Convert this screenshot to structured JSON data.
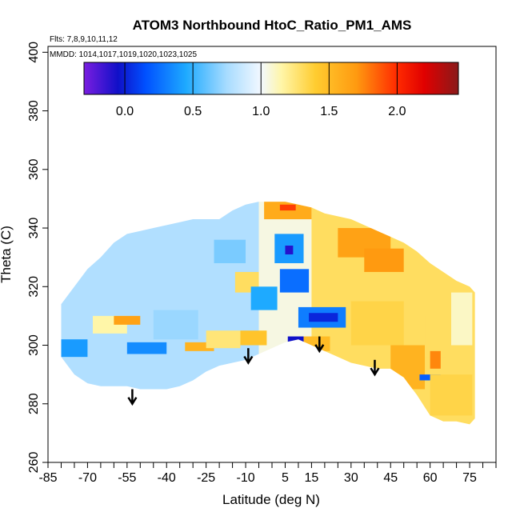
{
  "chart_data": {
    "type": "heatmap",
    "title": "ATOM3 Northbound HtoC_Ratio_PM1_AMS",
    "subtitle_flights": "Flts: 7,8,9,10,11,12",
    "subtitle_dates": "MMDD: 1014,1017,1019,1020,1023,1025",
    "xlabel": "Latitude (deg N)",
    "ylabel": "Theta (C)",
    "xlim": [
      -85,
      85
    ],
    "ylim": [
      260,
      402
    ],
    "x_ticks": [
      -85,
      -70,
      -55,
      -40,
      -25,
      -10,
      5,
      15,
      30,
      45,
      60,
      75
    ],
    "x_tick_labels": [
      "-85",
      "-70",
      "-55",
      "-40",
      "-25",
      "-10",
      "5",
      "15",
      "30",
      "45",
      "60",
      "75"
    ],
    "x_minor_step": 5,
    "y_ticks": [
      260,
      280,
      300,
      320,
      340,
      360,
      380,
      400
    ],
    "y_tick_labels": [
      "260",
      "280",
      "300",
      "320",
      "340",
      "360",
      "380",
      "400"
    ],
    "colorbar": {
      "range": [
        -0.3,
        2.45
      ],
      "ticks": [
        0.0,
        0.5,
        1.0,
        1.5,
        2.0
      ],
      "tick_labels": [
        "0.0",
        "0.5",
        "1.0",
        "1.5",
        "2.0"
      ],
      "stops": [
        {
          "v": -0.3,
          "c": "#7a1ee0"
        },
        {
          "v": -0.05,
          "c": "#1010c8"
        },
        {
          "v": 0.15,
          "c": "#0050ff"
        },
        {
          "v": 0.45,
          "c": "#1eaaff"
        },
        {
          "v": 0.75,
          "c": "#a8dcff"
        },
        {
          "v": 1.0,
          "c": "#f2f8ff"
        },
        {
          "v": 1.15,
          "c": "#fff6a8"
        },
        {
          "v": 1.4,
          "c": "#ffcc30"
        },
        {
          "v": 1.7,
          "c": "#ff9a10"
        },
        {
          "v": 2.0,
          "c": "#ff2a00"
        },
        {
          "v": 2.2,
          "c": "#e00000"
        },
        {
          "v": 2.45,
          "c": "#8a1a1a"
        }
      ]
    },
    "envelope": [
      {
        "x": -80,
        "ymin": 296,
        "ymax": 314
      },
      {
        "x": -75,
        "ymin": 290,
        "ymax": 320
      },
      {
        "x": -70,
        "ymin": 287,
        "ymax": 326
      },
      {
        "x": -65,
        "ymin": 286,
        "ymax": 330
      },
      {
        "x": -60,
        "ymin": 286,
        "ymax": 335
      },
      {
        "x": -55,
        "ymin": 286,
        "ymax": 338
      },
      {
        "x": -50,
        "ymin": 285,
        "ymax": 339
      },
      {
        "x": -45,
        "ymin": 285,
        "ymax": 340
      },
      {
        "x": -40,
        "ymin": 285,
        "ymax": 341
      },
      {
        "x": -35,
        "ymin": 286,
        "ymax": 342
      },
      {
        "x": -30,
        "ymin": 288,
        "ymax": 343
      },
      {
        "x": -25,
        "ymin": 291,
        "ymax": 343
      },
      {
        "x": -20,
        "ymin": 293,
        "ymax": 343
      },
      {
        "x": -15,
        "ymin": 294,
        "ymax": 346
      },
      {
        "x": -10,
        "ymin": 295,
        "ymax": 348
      },
      {
        "x": -5,
        "ymin": 297,
        "ymax": 349
      },
      {
        "x": 0,
        "ymin": 299,
        "ymax": 349
      },
      {
        "x": 5,
        "ymin": 301,
        "ymax": 349
      },
      {
        "x": 10,
        "ymin": 302,
        "ymax": 348
      },
      {
        "x": 15,
        "ymin": 300,
        "ymax": 347
      },
      {
        "x": 20,
        "ymin": 298,
        "ymax": 345
      },
      {
        "x": 25,
        "ymin": 296,
        "ymax": 344
      },
      {
        "x": 30,
        "ymin": 294,
        "ymax": 343
      },
      {
        "x": 35,
        "ymin": 293,
        "ymax": 341
      },
      {
        "x": 40,
        "ymin": 292,
        "ymax": 339
      },
      {
        "x": 45,
        "ymin": 292,
        "ymax": 337
      },
      {
        "x": 50,
        "ymin": 289,
        "ymax": 335
      },
      {
        "x": 55,
        "ymin": 283,
        "ymax": 332
      },
      {
        "x": 60,
        "ymin": 276,
        "ymax": 328
      },
      {
        "x": 65,
        "ymin": 274,
        "ymax": 325
      },
      {
        "x": 70,
        "ymin": 274,
        "ymax": 322
      },
      {
        "x": 75,
        "ymin": 273,
        "ymax": 320
      },
      {
        "x": 77,
        "ymin": 275,
        "ymax": 318
      }
    ],
    "background_regions": [
      {
        "x0": -85,
        "x1": -5,
        "y0": 260,
        "y1": 350,
        "v": 0.78
      },
      {
        "x0": -5,
        "x1": 15,
        "y0": 260,
        "y1": 350,
        "v": 1.05
      },
      {
        "x0": 15,
        "x1": 85,
        "y0": 260,
        "y1": 350,
        "v": 1.3
      }
    ],
    "features": [
      {
        "x0": -80,
        "x1": -70,
        "y0": 296,
        "y1": 302,
        "v": 0.4
      },
      {
        "x0": -68,
        "x1": -55,
        "y0": 304,
        "y1": 310,
        "v": 1.15
      },
      {
        "x0": -60,
        "x1": -50,
        "y0": 307,
        "y1": 310,
        "v": 1.65
      },
      {
        "x0": -55,
        "x1": -40,
        "y0": 297,
        "y1": 301,
        "v": 0.35
      },
      {
        "x0": -45,
        "x1": -28,
        "y0": 302,
        "y1": 312,
        "v": 0.72
      },
      {
        "x0": -33,
        "x1": -22,
        "y0": 298,
        "y1": 301,
        "v": 1.55
      },
      {
        "x0": -25,
        "x1": -12,
        "y0": 299,
        "y1": 305,
        "v": 1.25
      },
      {
        "x0": -22,
        "x1": -10,
        "y0": 328,
        "y1": 336,
        "v": 0.65
      },
      {
        "x0": -14,
        "x1": -5,
        "y0": 318,
        "y1": 325,
        "v": 1.3
      },
      {
        "x0": -8,
        "x1": 2,
        "y0": 312,
        "y1": 320,
        "v": 0.45
      },
      {
        "x0": -12,
        "x1": -2,
        "y0": 300,
        "y1": 305,
        "v": 1.45
      },
      {
        "x0": -3,
        "x1": 15,
        "y0": 343,
        "y1": 349,
        "v": 1.6
      },
      {
        "x0": 3,
        "x1": 9,
        "y0": 346,
        "y1": 348,
        "v": 1.95
      },
      {
        "x0": 1,
        "x1": 12,
        "y0": 328,
        "y1": 338,
        "v": 0.4
      },
      {
        "x0": 5,
        "x1": 8,
        "y0": 331,
        "y1": 334,
        "v": -0.1
      },
      {
        "x0": 3,
        "x1": 14,
        "y0": 318,
        "y1": 326,
        "v": 0.25
      },
      {
        "x0": 10,
        "x1": 28,
        "y0": 306,
        "y1": 313,
        "v": 0.3
      },
      {
        "x0": 14,
        "x1": 25,
        "y0": 308,
        "y1": 311,
        "v": 0.02
      },
      {
        "x0": 6,
        "x1": 12,
        "y0": 301,
        "y1": 303,
        "v": -0.05
      },
      {
        "x0": 12,
        "x1": 22,
        "y0": 298,
        "y1": 303,
        "v": 1.5
      },
      {
        "x0": 25,
        "x1": 45,
        "y0": 330,
        "y1": 340,
        "v": 1.65
      },
      {
        "x0": 35,
        "x1": 50,
        "y0": 325,
        "y1": 333,
        "v": 1.7
      },
      {
        "x0": 30,
        "x1": 50,
        "y0": 300,
        "y1": 315,
        "v": 1.35
      },
      {
        "x0": 45,
        "x1": 58,
        "y0": 285,
        "y1": 300,
        "v": 1.55
      },
      {
        "x0": 58,
        "x1": 66,
        "y0": 296,
        "y1": 310,
        "v": 1.3
      },
      {
        "x0": 60,
        "x1": 64,
        "y0": 292,
        "y1": 298,
        "v": 1.75
      },
      {
        "x0": 56,
        "x1": 64,
        "y0": 288,
        "y1": 290,
        "v": 0.2
      },
      {
        "x0": 60,
        "x1": 76,
        "y0": 276,
        "y1": 290,
        "v": 1.35
      },
      {
        "x0": 68,
        "x1": 76,
        "y0": 300,
        "y1": 318,
        "v": 1.1
      }
    ],
    "arrows": [
      {
        "x": -53,
        "y_top": 285,
        "y_tip": 280
      },
      {
        "x": -9,
        "y_top": 299,
        "y_tip": 294
      },
      {
        "x": 18,
        "y_top": 303,
        "y_tip": 298
      },
      {
        "x": 39,
        "y_top": 295,
        "y_tip": 290
      }
    ]
  }
}
